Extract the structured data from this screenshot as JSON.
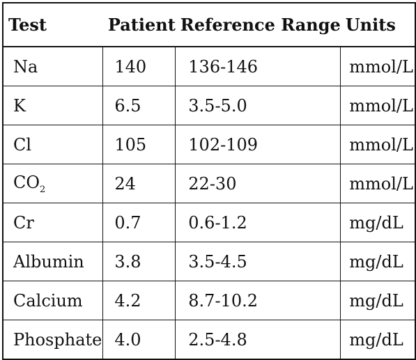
{
  "table": {
    "headers": {
      "test": "Test",
      "patient": "Patient",
      "reference_range": "Reference Range",
      "units": "Units"
    },
    "rows": [
      {
        "test": "Na",
        "patient": "140",
        "reference_range": "136-146",
        "units": "mmol/L"
      },
      {
        "test": "K",
        "patient": "6.5",
        "reference_range": "3.5-5.0",
        "units": "mmol/L"
      },
      {
        "test": "Cl",
        "patient": "105",
        "reference_range": "102-109",
        "units": "mmol/L"
      },
      {
        "test": "CO",
        "test_subscript": "2",
        "patient": "24",
        "reference_range": "22-30",
        "units": "mmol/L"
      },
      {
        "test": "Cr",
        "patient": "0.7",
        "reference_range": "0.6-1.2",
        "units": "mg/dL"
      },
      {
        "test": "Albumin",
        "patient": "3.8",
        "reference_range": "3.5-4.5",
        "units": "mg/dL"
      },
      {
        "test": "Calcium",
        "patient": "4.2",
        "reference_range": "8.7-10.2",
        "units": "mg/dL"
      },
      {
        "test": "Phosphate",
        "patient": "4.0",
        "reference_range": "2.5-4.8",
        "units": "mg/dL"
      }
    ]
  }
}
